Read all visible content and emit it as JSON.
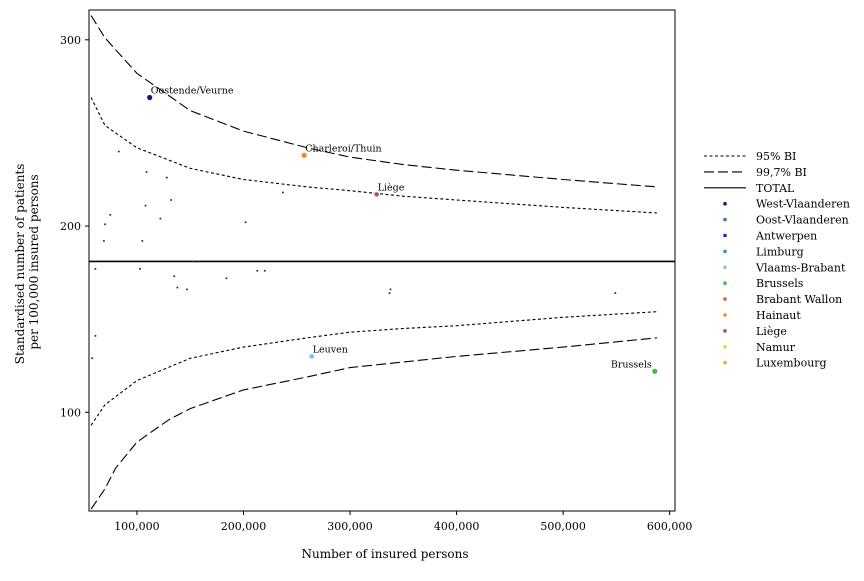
{
  "chart_data": {
    "type": "scatter",
    "title": "",
    "xlabel": "Number of insured persons",
    "ylabel_lines": [
      "Standardised number of patients",
      "per 100,000 insured persons"
    ],
    "xlim": [
      55000,
      605000
    ],
    "ylim": [
      47,
      316
    ],
    "x_ticks": [
      100000,
      200000,
      300000,
      400000,
      500000,
      600000
    ],
    "x_tick_labels": [
      "100,000",
      "200,000",
      "300,000",
      "400,000",
      "500,000",
      "600,000"
    ],
    "y_ticks": [
      100,
      200,
      300
    ],
    "y_tick_labels": [
      "100",
      "200",
      "300"
    ],
    "grid": false,
    "legend_position": "right",
    "total_value": 181,
    "legend": [
      {
        "label": "95% BI",
        "kind": "line",
        "dash": "short"
      },
      {
        "label": "99,7% BI",
        "kind": "line",
        "dash": "long"
      },
      {
        "label": "TOTAL",
        "kind": "line",
        "dash": "solid"
      },
      {
        "label": "West-Vlaanderen",
        "kind": "dot",
        "color": "#1a1a7a"
      },
      {
        "label": "Oost-Vlaanderen",
        "kind": "dot",
        "color": "#3f6fd8"
      },
      {
        "label": "Antwerpen",
        "kind": "dot",
        "color": "#1a1aee"
      },
      {
        "label": "Limburg",
        "kind": "dot",
        "color": "#2a8fd8"
      },
      {
        "label": "Vlaams-Brabant",
        "kind": "dot",
        "color": "#7ec8ee"
      },
      {
        "label": "Brussels",
        "kind": "dot",
        "color": "#3cbf3c"
      },
      {
        "label": "Brabant Wallon",
        "kind": "dot",
        "color": "#d06a3a"
      },
      {
        "label": "Hainaut",
        "kind": "dot",
        "color": "#f08c1e"
      },
      {
        "label": "Liège",
        "kind": "dot",
        "color": "#b05040"
      },
      {
        "label": "Namur",
        "kind": "dot",
        "color": "#f2d020"
      },
      {
        "label": "Luxembourg",
        "kind": "dot",
        "color": "#f0a830"
      }
    ],
    "bands": {
      "ci95_upper": [
        [
          57000,
          269
        ],
        [
          70000,
          254
        ],
        [
          100000,
          242
        ],
        [
          150000,
          231
        ],
        [
          200000,
          225
        ],
        [
          260000,
          221
        ],
        [
          300000,
          219
        ],
        [
          350000,
          216
        ],
        [
          400000,
          214
        ],
        [
          500000,
          210
        ],
        [
          588000,
          207
        ]
      ],
      "ci95_lower": [
        [
          57000,
          93
        ],
        [
          70000,
          104
        ],
        [
          100000,
          117
        ],
        [
          150000,
          129
        ],
        [
          200000,
          135
        ],
        [
          260000,
          140
        ],
        [
          300000,
          143
        ],
        [
          350000,
          145
        ],
        [
          400000,
          146.5
        ],
        [
          500000,
          151
        ],
        [
          588000,
          154
        ]
      ],
      "ci997_upper": [
        [
          57000,
          313
        ],
        [
          70000,
          301
        ],
        [
          100000,
          282
        ],
        [
          150000,
          262
        ],
        [
          200000,
          251
        ],
        [
          260000,
          242
        ],
        [
          300000,
          237
        ],
        [
          350000,
          233
        ],
        [
          400000,
          230
        ],
        [
          500000,
          225
        ],
        [
          588000,
          221
        ]
      ],
      "ci997_lower": [
        [
          57000,
          48
        ],
        [
          70000,
          59
        ],
        [
          80000,
          70
        ],
        [
          100000,
          84
        ],
        [
          130000,
          96
        ],
        [
          150000,
          102
        ],
        [
          200000,
          112
        ],
        [
          260000,
          119
        ],
        [
          300000,
          124
        ],
        [
          350000,
          127
        ],
        [
          400000,
          130
        ],
        [
          500000,
          135
        ],
        [
          588000,
          140
        ]
      ]
    },
    "points": [
      {
        "x": 112000,
        "y": 269,
        "color": "#1a1a7a",
        "size": 2.6,
        "label": "Oostende/Veurne"
      },
      {
        "x": 257000,
        "y": 238,
        "color": "#f08c1e",
        "size": 2.6,
        "label": "Charleroi/Thuin"
      },
      {
        "x": 325000,
        "y": 217,
        "color": "#b05040",
        "size": 2.2,
        "label": "Liège"
      },
      {
        "x": 264000,
        "y": 130,
        "color": "#7ec8ee",
        "size": 2.4,
        "label": "Leuven"
      },
      {
        "x": 586000,
        "y": 122,
        "color": "#3cbf3c",
        "size": 2.6,
        "label": "Brussels"
      },
      {
        "x": 83000,
        "y": 240,
        "color": "#333333",
        "size": 1
      },
      {
        "x": 109000,
        "y": 229,
        "color": "#333333",
        "size": 1
      },
      {
        "x": 128000,
        "y": 226,
        "color": "#333333",
        "size": 1
      },
      {
        "x": 237000,
        "y": 218,
        "color": "#333333",
        "size": 1
      },
      {
        "x": 132000,
        "y": 214,
        "color": "#333333",
        "size": 1
      },
      {
        "x": 108000,
        "y": 211,
        "color": "#333333",
        "size": 1
      },
      {
        "x": 75000,
        "y": 206,
        "color": "#333333",
        "size": 1
      },
      {
        "x": 122000,
        "y": 204,
        "color": "#333333",
        "size": 1
      },
      {
        "x": 70000,
        "y": 201,
        "color": "#333333",
        "size": 1
      },
      {
        "x": 202000,
        "y": 202,
        "color": "#333333",
        "size": 1
      },
      {
        "x": 69000,
        "y": 192,
        "color": "#333333",
        "size": 1
      },
      {
        "x": 105000,
        "y": 192,
        "color": "#333333",
        "size": 1
      },
      {
        "x": 153000,
        "y": 181,
        "color": "#333333",
        "size": 1
      },
      {
        "x": 61000,
        "y": 177,
        "color": "#333333",
        "size": 1
      },
      {
        "x": 103000,
        "y": 177,
        "color": "#333333",
        "size": 1
      },
      {
        "x": 213000,
        "y": 176,
        "color": "#333333",
        "size": 1
      },
      {
        "x": 220000,
        "y": 176,
        "color": "#333333",
        "size": 1
      },
      {
        "x": 135000,
        "y": 173,
        "color": "#333333",
        "size": 1
      },
      {
        "x": 184000,
        "y": 172,
        "color": "#333333",
        "size": 1
      },
      {
        "x": 138000,
        "y": 167,
        "color": "#333333",
        "size": 1
      },
      {
        "x": 147000,
        "y": 166,
        "color": "#333333",
        "size": 1
      },
      {
        "x": 338000,
        "y": 166,
        "color": "#333333",
        "size": 1
      },
      {
        "x": 337000,
        "y": 164,
        "color": "#333333",
        "size": 1
      },
      {
        "x": 549000,
        "y": 164,
        "color": "#333333",
        "size": 1
      },
      {
        "x": 61000,
        "y": 141,
        "color": "#333333",
        "size": 1
      },
      {
        "x": 58000,
        "y": 129,
        "color": "#333333",
        "size": 1
      }
    ]
  }
}
